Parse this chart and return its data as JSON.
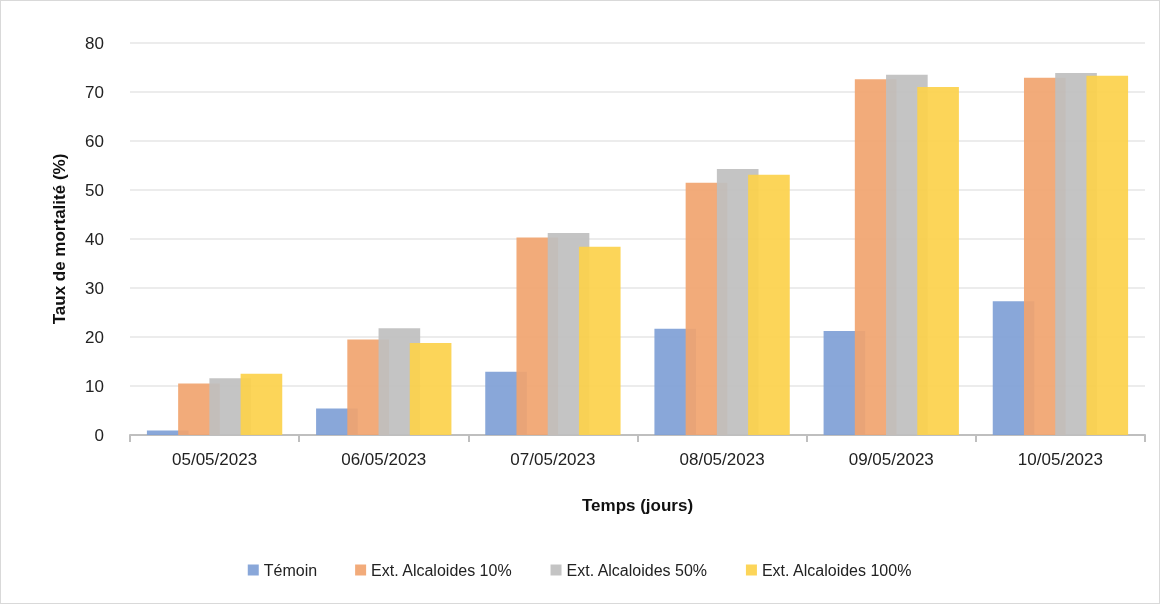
{
  "chart_data": {
    "type": "bar",
    "xlabel": "Temps (jours)",
    "ylabel": "Taux de mortalité (%)",
    "categories": [
      "05/05/2023",
      "06/05/2023",
      "07/05/2023",
      "08/05/2023",
      "09/05/2023",
      "10/05/2023"
    ],
    "series": [
      {
        "name": "Témoin",
        "color": "#7f9fd6",
        "values": [
          0.9,
          5.4,
          12.9,
          21.7,
          21.2,
          27.3
        ]
      },
      {
        "name": "Ext. Alcaloides 10%",
        "color": "#f1a46f",
        "values": [
          10.5,
          19.5,
          40.3,
          51.5,
          72.6,
          72.9
        ]
      },
      {
        "name": "Ext. Alcaloides 50%",
        "color": "#bfbfbf",
        "values": [
          11.6,
          21.8,
          41.2,
          54.3,
          73.5,
          73.9
        ]
      },
      {
        "name": "Ext. Alcaloides 100%",
        "color": "#fcd14b",
        "values": [
          12.5,
          18.8,
          38.4,
          53.1,
          71.0,
          73.3
        ]
      }
    ],
    "ylim": [
      0,
      80
    ],
    "yticks": [
      0,
      10,
      20,
      30,
      40,
      50,
      60,
      70,
      80
    ],
    "grid": "y",
    "legend": "bottom"
  }
}
